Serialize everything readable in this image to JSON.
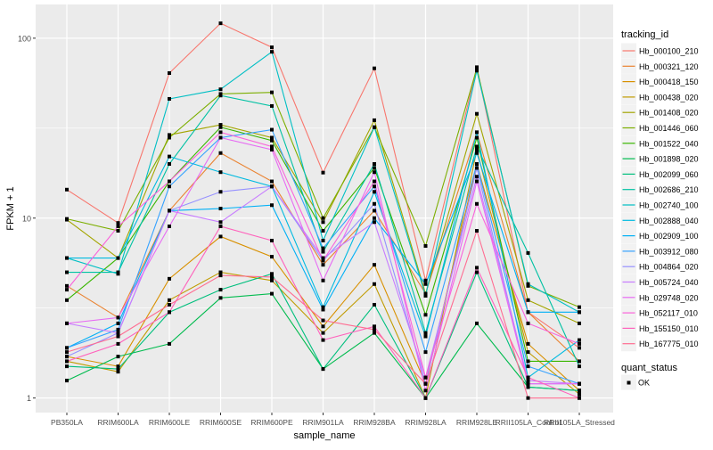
{
  "chart_data": {
    "type": "line",
    "xlabel": "sample_name",
    "ylabel": "FPKM + 1",
    "y_scale": "log10",
    "ylim": [
      0.83,
      154
    ],
    "yticks": [
      1,
      10,
      100
    ],
    "ytick_labels": [
      "1",
      "10",
      "100"
    ],
    "grid": true,
    "categories": [
      "PB350LA",
      "RRIM600LA",
      "RRIM600LE",
      "RRIM600SE",
      "RRIM600PE",
      "RRIM901LA",
      "RRIM928BA",
      "RRIM928LA",
      "RRIM928LE",
      "RRII105LA_Control",
      "RRII105LA_Stressed"
    ],
    "legend": {
      "title": "tracking_id",
      "placement": "right"
    },
    "shape_legend": {
      "title": "quant_status",
      "entries": [
        "OK"
      ]
    },
    "series": [
      {
        "name": "Hb_000100_210",
        "color": "#F8766D",
        "values": [
          14.4,
          9.4,
          64,
          121,
          89,
          17.9,
          68,
          4.5,
          69,
          3.0,
          1.9
        ]
      },
      {
        "name": "Hb_000321_120",
        "color": "#EA8331",
        "values": [
          4.2,
          2.8,
          11,
          23,
          16,
          5.5,
          11,
          3.8,
          30,
          3.0,
          1.6
        ]
      },
      {
        "name": "Hb_000418_150",
        "color": "#D89000",
        "values": [
          1.7,
          1.5,
          4.6,
          7.9,
          6.1,
          2.5,
          5.5,
          1.2,
          20,
          2.0,
          1.1
        ]
      },
      {
        "name": "Hb_000438_020",
        "color": "#C09B00",
        "values": [
          1.6,
          1.4,
          3.5,
          5.0,
          4.5,
          2.3,
          4.3,
          1.0,
          24,
          1.8,
          1.05
        ]
      },
      {
        "name": "Hb_001408_020",
        "color": "#A3A500",
        "values": [
          9.8,
          6.0,
          29,
          33,
          28,
          9.5,
          35,
          3.8,
          38,
          3.5,
          2.6
        ]
      },
      {
        "name": "Hb_001446_060",
        "color": "#7CAE00",
        "values": [
          9.9,
          8.5,
          28,
          49,
          50,
          10,
          32,
          7.0,
          68,
          4.2,
          3.2
        ]
      },
      {
        "name": "Hb_001522_040",
        "color": "#39B600",
        "values": [
          3.5,
          6.0,
          16,
          32,
          27,
          8.5,
          19,
          2.9,
          28,
          1.6,
          1.6
        ]
      },
      {
        "name": "Hb_001898_020",
        "color": "#00BB4E",
        "values": [
          1.25,
          1.7,
          2.0,
          3.6,
          3.8,
          1.45,
          2.3,
          1.0,
          2.6,
          1.15,
          1.1
        ]
      },
      {
        "name": "Hb_002099_060",
        "color": "#00BF7D",
        "values": [
          1.5,
          1.45,
          3.0,
          4.0,
          4.9,
          1.45,
          3.3,
          1.0,
          5.0,
          1.15,
          1.1
        ]
      },
      {
        "name": "Hb_002686_210",
        "color": "#00C1A3",
        "values": [
          5.0,
          5.0,
          20,
          48,
          42,
          6.5,
          20,
          2.3,
          25,
          6.4,
          1.5
        ]
      },
      {
        "name": "Hb_002740_100",
        "color": "#00BFC4",
        "values": [
          6.0,
          4.9,
          46,
          52,
          84,
          7.5,
          32,
          3.7,
          66,
          4.3,
          3.0
        ]
      },
      {
        "name": "Hb_002888_040",
        "color": "#00BAE0",
        "values": [
          6.0,
          6.0,
          22,
          18,
          15,
          3.2,
          14,
          2.2,
          30,
          1.3,
          2.1
        ]
      },
      {
        "name": "Hb_002909_100",
        "color": "#00B0F6",
        "values": [
          1.9,
          2.6,
          11,
          11.3,
          11.8,
          3.1,
          10,
          4.3,
          23,
          3.0,
          3.0
        ]
      },
      {
        "name": "Hb_003912_080",
        "color": "#35A2FF",
        "values": [
          1.9,
          2.4,
          15,
          28,
          31,
          6.8,
          15,
          1.8,
          20,
          1.5,
          1.2
        ]
      },
      {
        "name": "Hb_004864_020",
        "color": "#9590FF",
        "values": [
          1.7,
          2.3,
          11,
          14,
          15,
          5.8,
          12,
          1.2,
          19,
          1.2,
          1.2
        ]
      },
      {
        "name": "Hb_005724_040",
        "color": "#C77CFF",
        "values": [
          2.6,
          2.3,
          11,
          9.5,
          15,
          6.0,
          9.5,
          1.3,
          17,
          1.25,
          1.2
        ]
      },
      {
        "name": "Hb_029748_020",
        "color": "#E76BF3",
        "values": [
          2.6,
          2.8,
          9.0,
          28,
          24,
          4.5,
          18,
          1.1,
          16,
          1.2,
          1.2
        ]
      },
      {
        "name": "Hb_052117_010",
        "color": "#FA62DB",
        "values": [
          4.0,
          9.0,
          16,
          30,
          25,
          5.8,
          16,
          1.3,
          12,
          2.6,
          2.0
        ]
      },
      {
        "name": "Hb_155150_010",
        "color": "#FF62BC",
        "values": [
          1.6,
          2.0,
          3.0,
          9.0,
          7.5,
          2.1,
          2.5,
          1.0,
          5.3,
          1.3,
          1.0
        ]
      },
      {
        "name": "Hb_167775_010",
        "color": "#FF6C91",
        "values": [
          1.8,
          2.2,
          3.3,
          4.8,
          4.7,
          2.7,
          2.4,
          1.2,
          8.5,
          1.0,
          1.0
        ]
      }
    ]
  }
}
